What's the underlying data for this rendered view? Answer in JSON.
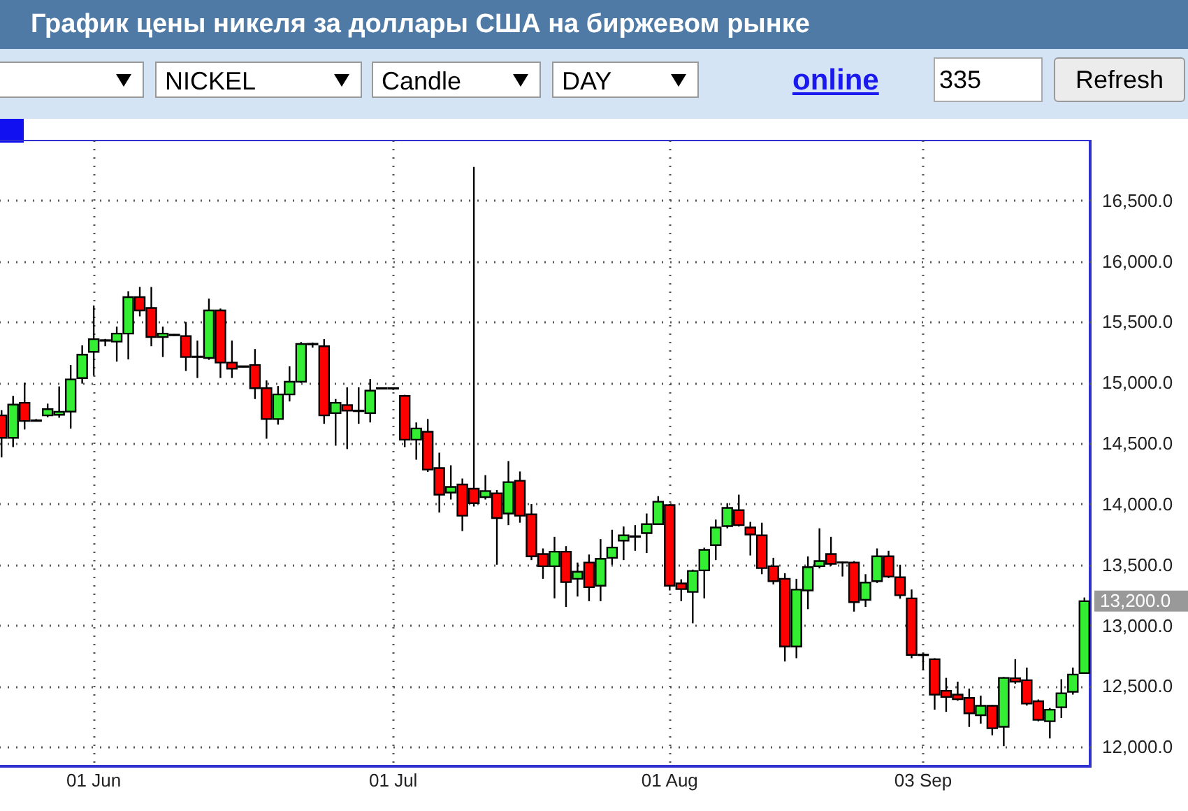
{
  "chart_data": {
    "type": "candlestick",
    "title": "График цены никеля за доллары США на биржевом рынке",
    "categories": [
      null,
      null,
      null,
      null,
      null,
      null,
      null,
      null,
      "01 Jun",
      null,
      null,
      null,
      null,
      null,
      null,
      null,
      null,
      null,
      null,
      null,
      null,
      null,
      null,
      null,
      null,
      null,
      null,
      null,
      null,
      null,
      null,
      null,
      null,
      null,
      "01 Jul",
      null,
      null,
      null,
      null,
      null,
      null,
      null,
      null,
      null,
      null,
      null,
      null,
      null,
      null,
      null,
      null,
      null,
      null,
      null,
      null,
      null,
      null,
      null,
      "01 Aug",
      null,
      null,
      null,
      null,
      null,
      null,
      null,
      null,
      null,
      null,
      null,
      null,
      null,
      null,
      null,
      null,
      null,
      null,
      null,
      null,
      null,
      "03 Sep",
      null,
      null,
      null,
      null,
      null,
      null,
      null,
      null,
      null,
      null,
      null,
      null,
      null,
      null
    ],
    "ohlc": [
      [
        14730,
        14773,
        14384,
        14545
      ],
      [
        14545,
        14891,
        14469,
        14819
      ],
      [
        14834,
        14999,
        14614,
        14684
      ],
      [
        14690,
        14700,
        14680,
        14685
      ],
      [
        14730,
        14827,
        14715,
        14781
      ],
      [
        14735,
        14969,
        14711,
        14760
      ],
      [
        14761,
        15145,
        14622,
        15026
      ],
      [
        15038,
        15307,
        14992,
        15231
      ],
      [
        15254,
        15635,
        15058,
        15358
      ],
      [
        15350,
        15360,
        15300,
        15345
      ],
      [
        15338,
        15461,
        15173,
        15404
      ],
      [
        15404,
        15753,
        15191,
        15704
      ],
      [
        15704,
        15788,
        15546,
        15595
      ],
      [
        15615,
        15788,
        15300,
        15376
      ],
      [
        15376,
        15461,
        15211,
        15404
      ],
      [
        15395,
        15400,
        15385,
        15390
      ],
      [
        15384,
        15500,
        15096,
        15211
      ],
      [
        15215,
        15346,
        15038,
        15211
      ],
      [
        15203,
        15692,
        15188,
        15595
      ],
      [
        15595,
        15610,
        15038,
        15165
      ],
      [
        15165,
        15346,
        15038,
        15115
      ],
      [
        15135,
        15140,
        15125,
        15130
      ],
      [
        15145,
        15277,
        14865,
        14954
      ],
      [
        14954,
        15018,
        14538,
        14700
      ],
      [
        14700,
        14972,
        14654,
        14903
      ],
      [
        14903,
        15134,
        14845,
        15007
      ],
      [
        15007,
        15334,
        14998,
        15318
      ],
      [
        15320,
        15330,
        15288,
        15315
      ],
      [
        15300,
        15358,
        14661,
        14730
      ],
      [
        14749,
        14865,
        14481,
        14834
      ],
      [
        14815,
        14961,
        14453,
        14769
      ],
      [
        14770,
        14961,
        14661,
        14765
      ],
      [
        14749,
        15030,
        14672,
        14934
      ],
      [
        14950,
        14960,
        14945,
        14955
      ],
      [
        14955,
        14960,
        14940,
        14950
      ],
      [
        14891,
        14900,
        14469,
        14530
      ],
      [
        14530,
        14672,
        14365,
        14622
      ],
      [
        14596,
        14700,
        14265,
        14284
      ],
      [
        14296,
        14423,
        13930,
        14077
      ],
      [
        14095,
        14319,
        14037,
        14141
      ],
      [
        14161,
        14210,
        13777,
        13904
      ],
      [
        14126,
        16777,
        13980,
        14007
      ],
      [
        14057,
        14238,
        14037,
        14107
      ],
      [
        14088,
        14115,
        13500,
        13884
      ],
      [
        13922,
        14354,
        13826,
        14180
      ],
      [
        14192,
        14268,
        13846,
        13904
      ],
      [
        13915,
        14000,
        13538,
        13569
      ],
      [
        13588,
        13634,
        13384,
        13488
      ],
      [
        13488,
        13730,
        13223,
        13607
      ],
      [
        13607,
        13653,
        13153,
        13357
      ],
      [
        13384,
        13518,
        13238,
        13442
      ],
      [
        13518,
        13584,
        13200,
        13315
      ],
      [
        13327,
        13711,
        13200,
        13549
      ],
      [
        13557,
        13788,
        13500,
        13642
      ],
      [
        13699,
        13815,
        13538,
        13742
      ],
      [
        13730,
        13826,
        13615,
        13735
      ],
      [
        13761,
        13922,
        13596,
        13834
      ],
      [
        13834,
        14065,
        13830,
        14019
      ],
      [
        13991,
        14000,
        13288,
        13327
      ],
      [
        13346,
        13380,
        13200,
        13299
      ],
      [
        13276,
        13460,
        13018,
        13449
      ],
      [
        13453,
        13640,
        13223,
        13622
      ],
      [
        13661,
        13872,
        13538,
        13807
      ],
      [
        13818,
        14007,
        13800,
        13968
      ],
      [
        13949,
        14077,
        13815,
        13826
      ],
      [
        13807,
        13853,
        13576,
        13749
      ],
      [
        13742,
        13846,
        13422,
        13472
      ],
      [
        13488,
        13557,
        13338,
        13365
      ],
      [
        13384,
        13430,
        12703,
        12826
      ],
      [
        12826,
        13384,
        12730,
        13295
      ],
      [
        13288,
        13569,
        13134,
        13480
      ],
      [
        13488,
        13800,
        13470,
        13530
      ],
      [
        13588,
        13730,
        13490,
        13507
      ],
      [
        13520,
        13525,
        13403,
        13518
      ],
      [
        13518,
        13530,
        13114,
        13192
      ],
      [
        13211,
        13422,
        13153,
        13353
      ],
      [
        13365,
        13634,
        13350,
        13569
      ],
      [
        13569,
        13615,
        13390,
        13403
      ],
      [
        13396,
        13500,
        13220,
        13249
      ],
      [
        13223,
        13296,
        12730,
        12757
      ],
      [
        12760,
        12770,
        12634,
        12755
      ],
      [
        12722,
        12730,
        12306,
        12430
      ],
      [
        12461,
        12568,
        12288,
        12411
      ],
      [
        12430,
        12537,
        12380,
        12392
      ],
      [
        12403,
        12480,
        12164,
        12276
      ],
      [
        12260,
        12422,
        12191,
        12338
      ],
      [
        12338,
        12345,
        12095,
        12153
      ],
      [
        12165,
        12575,
        12006,
        12568
      ],
      [
        12565,
        12722,
        12520,
        12537
      ],
      [
        12549,
        12653,
        12340,
        12357
      ],
      [
        12376,
        12390,
        12210,
        12222
      ],
      [
        12211,
        12320,
        12069,
        12306
      ],
      [
        12326,
        12557,
        12237,
        12441
      ],
      [
        12453,
        12653,
        12430,
        12595
      ],
      [
        12607,
        13230,
        12600,
        13200
      ]
    ],
    "ylim": [
      11840,
      17000
    ],
    "yticks": [
      {
        "value": 12000,
        "label": "12,000.0"
      },
      {
        "value": 12500,
        "label": "12,500.0"
      },
      {
        "value": 13000,
        "label": "13,000.0"
      },
      {
        "value": 13500,
        "label": "13,500.0"
      },
      {
        "value": 14000,
        "label": "14,000.0"
      },
      {
        "value": 14500,
        "label": "14,500.0"
      },
      {
        "value": 15000,
        "label": "15,000.0"
      },
      {
        "value": 15500,
        "label": "15,500.0"
      },
      {
        "value": 16000,
        "label": "16,000.0"
      },
      {
        "value": 16500,
        "label": "16,500.0"
      }
    ],
    "grid": true,
    "annotations": [
      "NICKEL",
      "Candle",
      "DAY",
      "online",
      "335",
      "Refresh",
      "13,200.0"
    ]
  }
}
